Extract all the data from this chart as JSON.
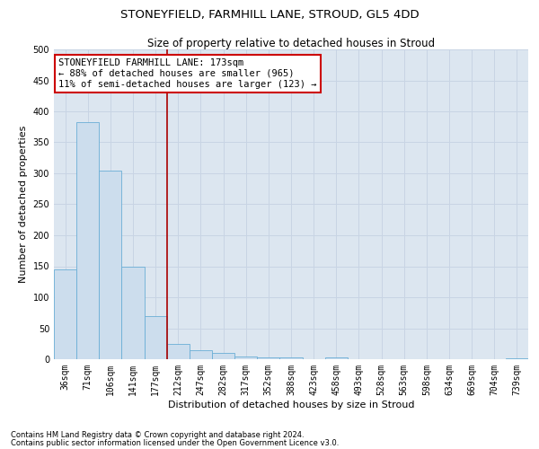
{
  "title": "STONEYFIELD, FARMHILL LANE, STROUD, GL5 4DD",
  "subtitle": "Size of property relative to detached houses in Stroud",
  "xlabel": "Distribution of detached houses by size in Stroud",
  "ylabel": "Number of detached properties",
  "footnote1": "Contains HM Land Registry data © Crown copyright and database right 2024.",
  "footnote2": "Contains public sector information licensed under the Open Government Licence v3.0.",
  "bar_labels": [
    "36sqm",
    "71sqm",
    "106sqm",
    "141sqm",
    "177sqm",
    "212sqm",
    "247sqm",
    "282sqm",
    "317sqm",
    "352sqm",
    "388sqm",
    "423sqm",
    "458sqm",
    "493sqm",
    "528sqm",
    "563sqm",
    "598sqm",
    "634sqm",
    "669sqm",
    "704sqm",
    "739sqm"
  ],
  "bar_values": [
    145,
    383,
    305,
    150,
    70,
    25,
    15,
    10,
    5,
    3,
    3,
    0,
    3,
    0,
    0,
    0,
    0,
    0,
    0,
    0,
    2
  ],
  "bar_color": "#ccdded",
  "bar_edge_color": "#6aaed6",
  "grid_color": "#c8d4e4",
  "background_color": "#dce6f0",
  "vline_x": 4.5,
  "vline_color": "#aa0000",
  "annotation_text": "STONEYFIELD FARMHILL LANE: 173sqm\n← 88% of detached houses are smaller (965)\n11% of semi-detached houses are larger (123) →",
  "annotation_box_color": "#cc0000",
  "ylim": [
    0,
    500
  ],
  "yticks": [
    0,
    50,
    100,
    150,
    200,
    250,
    300,
    350,
    400,
    450,
    500
  ],
  "title_fontsize": 9.5,
  "subtitle_fontsize": 8.5,
  "ylabel_fontsize": 8,
  "xlabel_fontsize": 8,
  "tick_fontsize": 7,
  "annot_fontsize": 7.5,
  "footnote_fontsize": 6
}
